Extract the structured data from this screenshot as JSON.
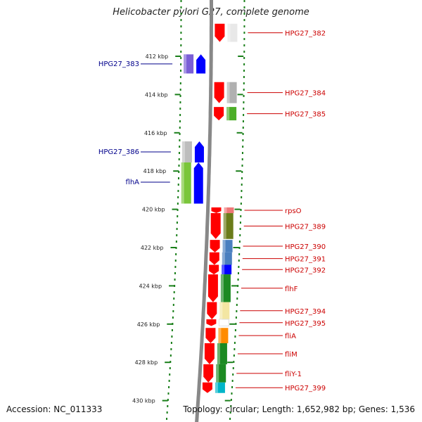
{
  "title": "Helicobacter pylori G27, complete genome",
  "footer": {
    "accession": "Accession: NC_011333",
    "summary": "Topology: circular; Length: 1,652,982 bp; Genes: 1,536"
  },
  "colors": {
    "forward_strand": "#0000ff",
    "reverse_strand": "#ff0000",
    "forward_label": "#00008b",
    "reverse_label": "#cc0000",
    "backbone": "#888888",
    "ticks": "#1a7f1a"
  },
  "axis": {
    "unit": "kbp",
    "ticks": [
      {
        "kbp": 412,
        "label": "412 kbp"
      },
      {
        "kbp": 414,
        "label": "414 kbp"
      },
      {
        "kbp": 416,
        "label": "416 kbp"
      },
      {
        "kbp": 418,
        "label": "418 kbp"
      },
      {
        "kbp": 420,
        "label": "420 kbp"
      },
      {
        "kbp": 422,
        "label": "422 kbp"
      },
      {
        "kbp": 424,
        "label": "424 kbp"
      },
      {
        "kbp": 426,
        "label": "426 kbp"
      },
      {
        "kbp": 428,
        "label": "428 kbp"
      },
      {
        "kbp": 430,
        "label": "430 kbp"
      }
    ]
  },
  "genes_forward": [
    {
      "name": "HPG27_383",
      "start": 411.9,
      "end": 412.9,
      "colors": [
        "#7a5fd6",
        "#0000ff"
      ]
    },
    {
      "name": "HPG27_386",
      "start": 416.45,
      "end": 417.55,
      "colors": [
        "#bdbdbd",
        "#0000ff"
      ]
    },
    {
      "name": "flhA",
      "start": 417.55,
      "end": 419.7,
      "colors": [
        "#7ac63a",
        "#0000ff"
      ]
    }
  ],
  "genes_reverse": [
    {
      "name": "HPG27_382",
      "start": 410.3,
      "end": 411.25,
      "colors": [
        "#ff0000",
        "#e8e8e8"
      ]
    },
    {
      "name": "HPG27_384",
      "start": 413.35,
      "end": 414.45,
      "colors": [
        "#ff0000",
        "#b0b0b0"
      ]
    },
    {
      "name": "HPG27_385",
      "start": 414.65,
      "end": 415.35,
      "colors": [
        "#ff0000",
        "#4cae28"
      ]
    },
    {
      "name": "rpsO",
      "start": 419.9,
      "end": 420.2,
      "colors": [
        "#ff0000",
        "#ee7777"
      ]
    },
    {
      "name": "HPG27_389",
      "start": 420.2,
      "end": 421.55,
      "colors": [
        "#ff0000",
        "#6b7c1a"
      ]
    },
    {
      "name": "HPG27_390",
      "start": 421.6,
      "end": 422.25,
      "colors": [
        "#ff0000",
        "#4a7fbf"
      ]
    },
    {
      "name": "HPG27_391",
      "start": 422.25,
      "end": 422.9,
      "colors": [
        "#ff0000",
        "#4a7fbf"
      ]
    },
    {
      "name": "HPG27_392",
      "start": 422.9,
      "end": 423.4,
      "colors": [
        "#ff0000",
        "#0000ff"
      ]
    },
    {
      "name": "flhF",
      "start": 423.4,
      "end": 424.85,
      "colors": [
        "#ff0000",
        "#1c8a22"
      ]
    },
    {
      "name": "HPG27_394",
      "start": 424.85,
      "end": 425.75,
      "colors": [
        "#ff0000",
        "#f3e6a2"
      ]
    },
    {
      "name": "HPG27_395",
      "start": 425.75,
      "end": 426.1,
      "colors": [
        "#ff0000",
        "#ffffff"
      ]
    },
    {
      "name": "fliA",
      "start": 426.2,
      "end": 427.0,
      "colors": [
        "#ff0000",
        "#ff8c00"
      ]
    },
    {
      "name": "fliM",
      "start": 427.0,
      "end": 428.1,
      "colors": [
        "#ff0000",
        "#1c8a22"
      ]
    },
    {
      "name": "fliY-1",
      "start": 428.1,
      "end": 429.05,
      "colors": [
        "#ff0000",
        "#1c8a22"
      ]
    },
    {
      "name": "HPG27_399",
      "start": 429.05,
      "end": 429.6,
      "colors": [
        "#ff0000",
        "#00b5c8"
      ]
    }
  ]
}
